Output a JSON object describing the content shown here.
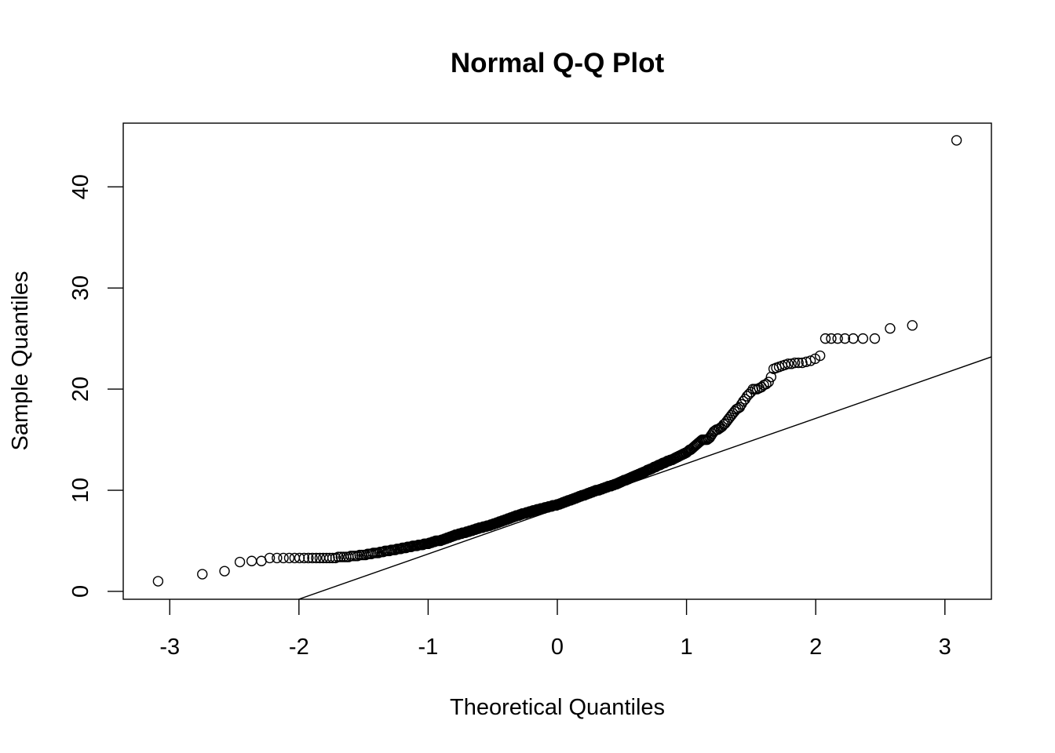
{
  "chart_data": {
    "type": "scatter",
    "title": "Normal Q-Q Plot",
    "xlabel": "Theoretical Quantiles",
    "ylabel": "Sample Quantiles",
    "xlim": [
      -3.36,
      3.36
    ],
    "ylim": [
      -0.78,
      46.3
    ],
    "x_ticks": [
      "-3",
      "-2",
      "-1",
      "0",
      "1",
      "2",
      "3"
    ],
    "y_ticks": [
      "0",
      "10",
      "20",
      "30",
      "40"
    ],
    "grid": false,
    "legend": "none",
    "point_style": "open-circle",
    "colors": {
      "points": "#000000",
      "line": "#000000"
    },
    "reference_line": {
      "intercept": 8.17,
      "slope": 4.47
    },
    "sample_sorted": [
      1.0,
      1.7,
      2.0,
      2.9,
      3.0,
      3.0,
      3.3,
      3.3,
      3.3,
      3.3,
      3.3,
      3.3,
      3.3,
      3.3,
      3.3,
      3.3,
      3.3,
      3.3,
      3.3,
      3.3,
      3.3,
      3.3,
      3.4,
      3.4,
      3.4,
      3.4,
      3.4,
      3.5,
      3.5,
      3.5,
      3.5,
      3.6,
      3.6,
      3.6,
      3.6,
      3.7,
      3.7,
      3.7,
      3.8,
      3.8,
      3.8,
      3.8,
      3.9,
      3.9,
      3.9,
      4.0,
      4.0,
      4.0,
      4.0,
      4.1,
      4.1,
      4.1,
      4.1,
      4.2,
      4.2,
      4.2,
      4.2,
      4.3,
      4.3,
      4.3,
      4.3,
      4.4,
      4.4,
      4.4,
      4.4,
      4.5,
      4.5,
      4.5,
      4.5,
      4.5,
      4.6,
      4.6,
      4.6,
      4.6,
      4.6,
      4.7,
      4.7,
      4.7,
      4.7,
      4.7,
      4.8,
      4.8,
      4.8,
      4.9,
      4.9,
      4.9,
      5.0,
      5.0,
      5.0,
      5.0,
      5.0,
      5.0,
      5.1,
      5.1,
      5.1,
      5.2,
      5.2,
      5.2,
      5.3,
      5.3,
      5.3,
      5.4,
      5.4,
      5.4,
      5.5,
      5.5,
      5.5,
      5.6,
      5.6,
      5.6,
      5.6,
      5.7,
      5.7,
      5.7,
      5.7,
      5.8,
      5.8,
      5.8,
      5.8,
      5.8,
      5.9,
      5.9,
      5.9,
      5.9,
      6.0,
      6.0,
      6.0,
      6.0,
      6.1,
      6.1,
      6.1,
      6.1,
      6.2,
      6.2,
      6.2,
      6.2,
      6.3,
      6.3,
      6.3,
      6.3,
      6.3,
      6.4,
      6.4,
      6.4,
      6.4,
      6.4,
      6.5,
      6.5,
      6.5,
      6.5,
      6.5,
      6.6,
      6.6,
      6.6,
      6.6,
      6.7,
      6.7,
      6.7,
      6.7,
      6.8,
      6.8,
      6.8,
      6.8,
      6.9,
      6.9,
      6.9,
      6.9,
      7.0,
      7.0,
      7.0,
      7.0,
      7.1,
      7.1,
      7.1,
      7.1,
      7.2,
      7.2,
      7.2,
      7.2,
      7.3,
      7.3,
      7.3,
      7.3,
      7.4,
      7.4,
      7.4,
      7.4,
      7.5,
      7.5,
      7.5,
      7.5,
      7.5,
      7.6,
      7.6,
      7.6,
      7.6,
      7.7,
      7.7,
      7.7,
      7.7,
      7.7,
      7.7,
      7.8,
      7.8,
      7.8,
      7.8,
      7.8,
      7.9,
      7.9,
      7.9,
      7.9,
      7.9,
      8.0,
      8.0,
      8.0,
      8.0,
      8.0,
      8.0,
      8.1,
      8.1,
      8.1,
      8.1,
      8.1,
      8.1,
      8.2,
      8.2,
      8.2,
      8.2,
      8.2,
      8.2,
      8.3,
      8.3,
      8.3,
      8.3,
      8.3,
      8.3,
      8.4,
      8.4,
      8.4,
      8.4,
      8.4,
      8.4,
      8.5,
      8.5,
      8.5,
      8.5,
      8.5,
      8.5,
      8.5,
      8.6,
      8.6,
      8.6,
      8.6,
      8.6,
      8.7,
      8.7,
      8.7,
      8.7,
      8.8,
      8.8,
      8.8,
      8.8,
      8.9,
      8.9,
      8.9,
      8.9,
      9.0,
      9.0,
      9.0,
      9.0,
      9.0,
      9.1,
      9.1,
      9.1,
      9.1,
      9.2,
      9.2,
      9.2,
      9.2,
      9.3,
      9.3,
      9.3,
      9.3,
      9.4,
      9.4,
      9.4,
      9.4,
      9.5,
      9.5,
      9.5,
      9.5,
      9.5,
      9.6,
      9.6,
      9.6,
      9.6,
      9.7,
      9.7,
      9.7,
      9.7,
      9.8,
      9.8,
      9.8,
      9.8,
      9.9,
      9.9,
      9.9,
      9.9,
      10.0,
      10.0,
      10.0,
      10.0,
      10.0,
      10.0,
      10.1,
      10.1,
      10.1,
      10.1,
      10.2,
      10.2,
      10.2,
      10.2,
      10.3,
      10.3,
      10.3,
      10.3,
      10.4,
      10.4,
      10.4,
      10.4,
      10.4,
      10.5,
      10.5,
      10.5,
      10.5,
      10.6,
      10.6,
      10.6,
      10.6,
      10.7,
      10.7,
      10.7,
      10.8,
      10.8,
      10.8,
      10.9,
      10.9,
      10.9,
      11.0,
      11.0,
      11.0,
      11.0,
      11.1,
      11.1,
      11.1,
      11.2,
      11.2,
      11.2,
      11.3,
      11.3,
      11.3,
      11.4,
      11.4,
      11.4,
      11.5,
      11.5,
      11.5,
      11.6,
      11.6,
      11.6,
      11.7,
      11.7,
      11.7,
      11.8,
      11.8,
      11.8,
      11.9,
      11.9,
      12.0,
      12.0,
      12.0,
      12.1,
      12.1,
      12.1,
      12.2,
      12.2,
      12.3,
      12.3,
      12.3,
      12.4,
      12.4,
      12.5,
      12.5,
      12.5,
      12.6,
      12.6,
      12.7,
      12.7,
      12.7,
      12.8,
      12.8,
      12.9,
      12.9,
      12.9,
      13.0,
      13.0,
      13.0,
      13.1,
      13.1,
      13.2,
      13.2,
      13.3,
      13.3,
      13.4,
      13.4,
      13.5,
      13.5,
      13.6,
      13.6,
      13.7,
      13.7,
      13.8,
      13.9,
      14.0,
      14.0,
      14.1,
      14.2,
      14.3,
      14.4,
      14.5,
      14.6,
      14.7,
      14.8,
      14.9,
      15.0,
      15.0,
      15.0,
      15.0,
      15.0,
      15.1,
      15.2,
      15.4,
      15.6,
      15.8,
      15.9,
      16.0,
      16.0,
      16.1,
      16.2,
      16.3,
      16.5,
      16.6,
      16.8,
      17.0,
      17.2,
      17.4,
      17.6,
      17.8,
      18.0,
      18.1,
      18.2,
      18.5,
      18.8,
      19.0,
      19.3,
      19.5,
      19.7,
      20.0,
      20.0,
      20.0,
      20.1,
      20.2,
      20.4,
      20.5,
      20.7,
      21.2,
      22.0,
      22.1,
      22.2,
      22.3,
      22.4,
      22.5,
      22.5,
      22.6,
      22.6,
      22.6,
      22.7,
      22.8,
      23.0,
      23.3,
      25.0,
      25.0,
      25.0,
      25.0,
      25.0,
      25.0,
      25.0,
      26.0,
      26.3,
      44.6
    ]
  }
}
